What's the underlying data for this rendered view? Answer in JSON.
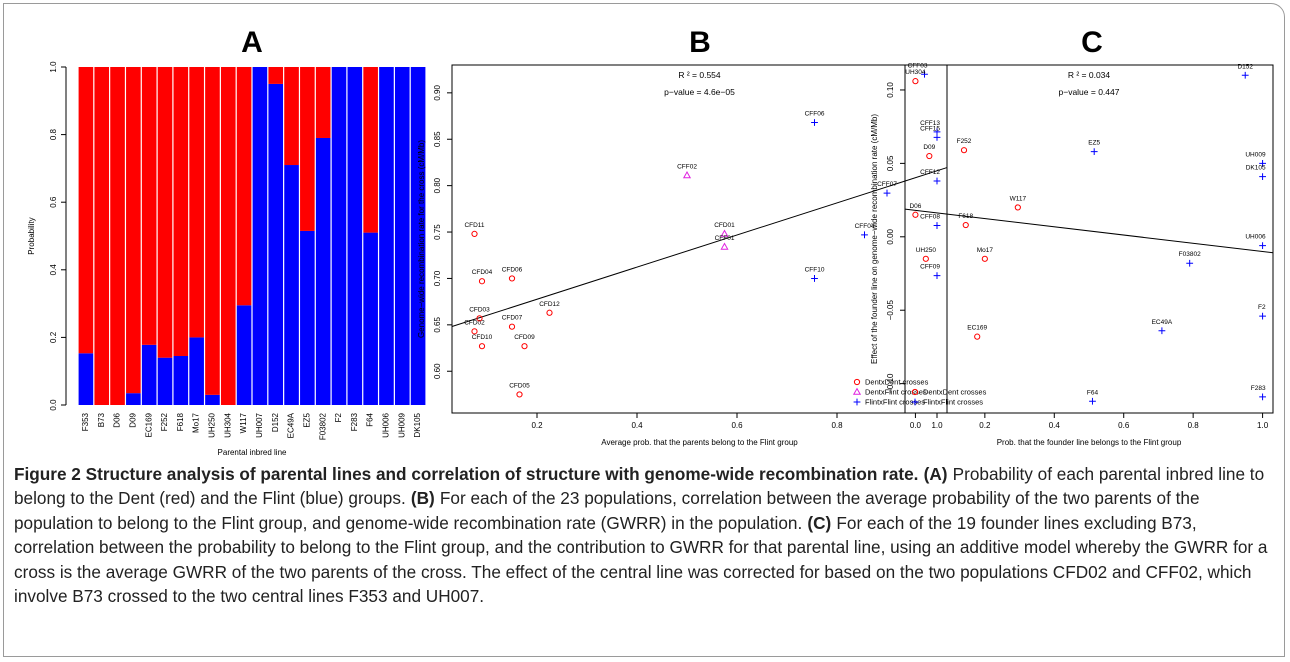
{
  "chart_data": [
    {
      "type": "bar",
      "stacked": true,
      "title": "A",
      "x_label": "Parental inbred line",
      "y_label": "Probability",
      "categories": [
        "F353",
        "B73",
        "D06",
        "D09",
        "EC169",
        "F252",
        "F618",
        "Mo17",
        "UH250",
        "UH304",
        "W117",
        "UH007",
        "D152",
        "EC49A",
        "EZ5",
        "F03802",
        "F2",
        "F283",
        "F64",
        "UH006",
        "UH009",
        "DK105"
      ],
      "series": [
        {
          "color": "#0000ff",
          "values": [
            0.153,
            0,
            0,
            0.035,
            0.178,
            0.14,
            0.145,
            0.2,
            0.03,
            0,
            0.295,
            1,
            0.95,
            0.71,
            0.515,
            0.79,
            1,
            1,
            0.51,
            1,
            1,
            1
          ]
        },
        {
          "color": "#ff0000",
          "values": [
            0.847,
            1,
            1,
            0.965,
            0.822,
            0.86,
            0.855,
            0.8,
            0.97,
            1,
            0.705,
            0,
            0.05,
            0.29,
            0.485,
            0.21,
            0,
            0,
            0.49,
            0,
            0,
            0
          ]
        }
      ],
      "ylim": [
        0,
        1
      ],
      "yticks": [
        {
          "value": 0,
          "label": "0.0"
        },
        0.2,
        0.4,
        0.6,
        0.8,
        {
          "value": 1,
          "label": "1.0"
        }
      ]
    },
    {
      "type": "scatter",
      "title": "B",
      "x_label": "Average prob. that the parents belong to the Flint group",
      "y_label": "Genome−wide recombination rate for the cross (cM/Mb)",
      "annotations": [
        "R ² =  0.554",
        "p−value = 4.6e−05"
      ],
      "series": [
        {
          "name": "DentxDent crosses",
          "color": "#ff0000",
          "marker": "circle",
          "labels": [
            "CFD05",
            "CFD10",
            "CFD09",
            "CFD02",
            "CFD07",
            "CFD03",
            "CFD12",
            "CFD04",
            "CFD06",
            "CFD11"
          ],
          "x": [
            0.165,
            0.09,
            0.175,
            0.075,
            0.15,
            0.085,
            0.225,
            0.09,
            0.15,
            0.075
          ],
          "values": [
            0.575,
            0.627,
            0.627,
            0.643,
            0.648,
            0.657,
            0.663,
            0.697,
            0.7,
            0.748
          ]
        },
        {
          "name": "DentxFlint crosses",
          "color": "#e020e0",
          "marker": "triangle",
          "labels": [
            "CFD01",
            "CFF01",
            "CFF02"
          ],
          "x": [
            0.575,
            0.575,
            0.5
          ],
          "values": [
            0.748,
            0.734,
            0.811
          ]
        },
        {
          "name": "FlintxFlint crosses",
          "color": "#0000ff",
          "marker": "plus",
          "labels": [
            "CFF03",
            "CFF06",
            "CFF13",
            "CFF15",
            "CFF07",
            "CFF12",
            "CFF04",
            "CFF08",
            "CFF10",
            "CFF09"
          ],
          "x": [
            0.975,
            0.755,
            1,
            1,
            0.9,
            1,
            0.855,
            1,
            0.755,
            1
          ],
          "values": [
            0.92,
            0.868,
            0.858,
            0.852,
            0.792,
            0.805,
            0.747,
            0.757,
            0.7,
            0.703
          ]
        }
      ],
      "fit_line": {
        "intercept": 0.643,
        "slope": 0.173
      },
      "legend": "bottom-right",
      "xlim": [
        0.03,
        1.02
      ],
      "xticks": [
        0.2,
        0.4,
        0.6,
        0.8,
        {
          "value": 1,
          "label": "1.0"
        }
      ],
      "ylim": [
        0.555,
        0.93
      ],
      "yticks": [
        {
          "value": 0.6,
          "label": "0.60"
        },
        0.65,
        {
          "value": 0.7,
          "label": "0.70"
        },
        0.75,
        {
          "value": 0.8,
          "label": "0.80"
        },
        0.85,
        {
          "value": 0.9,
          "label": "0.90"
        }
      ]
    },
    {
      "type": "scatter",
      "title": "C",
      "x_label": "Prob. that the founder line belongs to the Flint group",
      "y_label": "Effect of the founder line on genome−wide recombination rate (cM/Mb)",
      "annotations": [
        "R ² =  0.034",
        "p−value = 0.447"
      ],
      "series": [
        {
          "name": "DentxDent crosses",
          "color": "#ff0000",
          "marker": "circle",
          "labels": [
            "UH304",
            "D09",
            "F252",
            "D06",
            "F618",
            "W117",
            "UH250",
            "Mo17",
            "EC169"
          ],
          "x": [
            0,
            0.04,
            0.14,
            0,
            0.145,
            0.295,
            0.03,
            0.2,
            0.178
          ],
          "values": [
            0.106,
            0.055,
            0.059,
            0.015,
            0.008,
            0.02,
            -0.015,
            -0.015,
            -0.068
          ]
        },
        {
          "name": "FlintxFlint crosses",
          "color": "#0000ff",
          "marker": "plus",
          "labels": [
            "D152",
            "EZ5",
            "UH009",
            "DK105",
            "UH006",
            "F03802",
            "F2",
            "EC49A",
            "F64",
            "F283"
          ],
          "x": [
            0.95,
            0.515,
            1,
            1,
            1,
            0.79,
            1,
            0.71,
            0.51,
            1
          ],
          "values": [
            0.11,
            0.058,
            0.05,
            0.041,
            -0.006,
            -0.018,
            -0.054,
            -0.064,
            -0.112,
            -0.109
          ]
        }
      ],
      "fit_line": {
        "intercept": 0.018,
        "slope": -0.028
      },
      "legend": "bottom-left",
      "xlim": [
        -0.03,
        1.03
      ],
      "xticks": [
        {
          "value": 0,
          "label": "0.0"
        },
        0.2,
        0.4,
        0.6,
        0.8,
        {
          "value": 1,
          "label": "1.0"
        }
      ],
      "ylim": [
        -0.12,
        0.117
      ],
      "yticks": [
        {
          "value": -0.1,
          "label": "−0.10"
        },
        {
          "value": -0.05,
          "label": "−0.05"
        },
        {
          "value": 0,
          "label": "0.00"
        },
        0.05,
        {
          "value": 0.1,
          "label": "0.10"
        }
      ]
    }
  ],
  "caption": {
    "title": "Figure 2 Structure analysis of parental lines and correlation of structure with genome-wide recombination rate.",
    "parts": [
      {
        "label": "(A)",
        "text": "Probability of each parental inbred line to belong to the Dent (red) and the Flint (blue) groups."
      },
      {
        "label": "(B)",
        "text": "For each of the 23 populations, correlation between the average probability of the two parents of the population to belong to the Flint group, and genome-wide recombination rate (GWRR) in the population."
      },
      {
        "label": "(C)",
        "text": "For each of the 19 founder lines excluding B73, correlation between the probability to belong to the Flint group, and the contribution to GWRR for that parental line, using an additive model whereby the GWRR for a cross is the average GWRR of the two parents of the cross. The effect of the central line was corrected for based on the two populations CFD02 and CFF02, which involve B73 crossed to the two central lines F353 and UH007."
      }
    ]
  }
}
